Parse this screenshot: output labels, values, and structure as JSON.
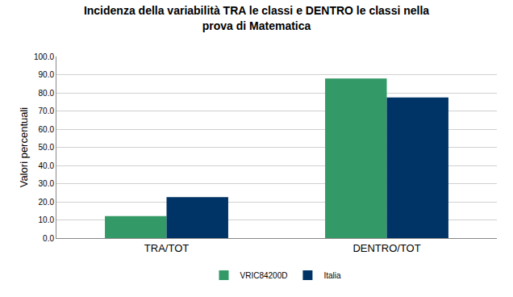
{
  "chart_data": {
    "type": "bar",
    "title": "Incidenza della variabilità TRA le classi e DENTRO le classi nella prova di Matematica",
    "y_label": "Valori percentuali",
    "categories": [
      "TRA/TOT",
      "DENTRO/TOT"
    ],
    "series": [
      {
        "name": "VRIC84200D",
        "color": "#339966",
        "values": [
          12.1,
          87.9
        ]
      },
      {
        "name": "Italia",
        "color": "#003366",
        "values": [
          22.6,
          77.4
        ]
      }
    ],
    "ylim": [
      0,
      100
    ],
    "yticks": [
      {
        "value": 0,
        "label": "0.0"
      },
      {
        "value": 10,
        "label": "10.0"
      },
      {
        "value": 20,
        "label": "20.0"
      },
      {
        "value": 30,
        "label": "30.0"
      },
      {
        "value": 40,
        "label": "40.0"
      },
      {
        "value": 50,
        "label": "50.0"
      },
      {
        "value": 60,
        "label": "60.0"
      },
      {
        "value": 70,
        "label": "70.0"
      },
      {
        "value": 80,
        "label": "80.0"
      },
      {
        "value": 90,
        "label": "90.0"
      },
      {
        "value": 100,
        "label": "100.0"
      }
    ],
    "grid": true,
    "legend": "bottom"
  }
}
